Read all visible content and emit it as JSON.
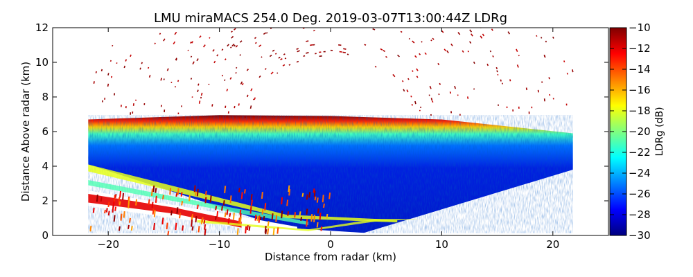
{
  "chart_data": {
    "type": "heatmap",
    "title": "LMU miraMACS 254.0 Deg. 2019-03-07T13:00:44Z  LDRg",
    "xlabel": "Distance from radar (km)",
    "ylabel": "Distance Above radar  (km)",
    "xlim": [
      -25,
      25
    ],
    "ylim": [
      0,
      12
    ],
    "x_ticks": [
      -20,
      -10,
      0,
      10,
      20
    ],
    "x_tick_labels": [
      "−20",
      "−10",
      "0",
      "10",
      "20"
    ],
    "y_ticks": [
      0,
      2,
      4,
      6,
      8,
      10,
      12
    ],
    "y_tick_labels": [
      "0",
      "2",
      "4",
      "6",
      "8",
      "10",
      "12"
    ],
    "colorbar": {
      "label": "LDRg (dB)",
      "range": [
        -30,
        -10
      ],
      "ticks": [
        -10,
        -12,
        -14,
        -16,
        -18,
        -20,
        -22,
        -24,
        -26,
        -28,
        -30
      ],
      "tick_labels": [
        "−10",
        "−12",
        "−14",
        "−16",
        "−18",
        "−20",
        "−22",
        "−24",
        "−26",
        "−28",
        "−30"
      ],
      "colormap": "jet"
    },
    "scan": {
      "upper_left_corner_km": [
        -21.8,
        6.7
      ],
      "upper_right_corner_km": [
        21.8,
        5.9
      ],
      "lower_left_corner_km": [
        -21.8,
        4.1
      ],
      "lower_right_corner_km": [
        21.8,
        3.8
      ],
      "cloud_top_km": 6.9,
      "typical_ldr_db": -28,
      "cloud_top_ldr_db": -12,
      "ground_clutter_ldr_db": -18
    }
  }
}
